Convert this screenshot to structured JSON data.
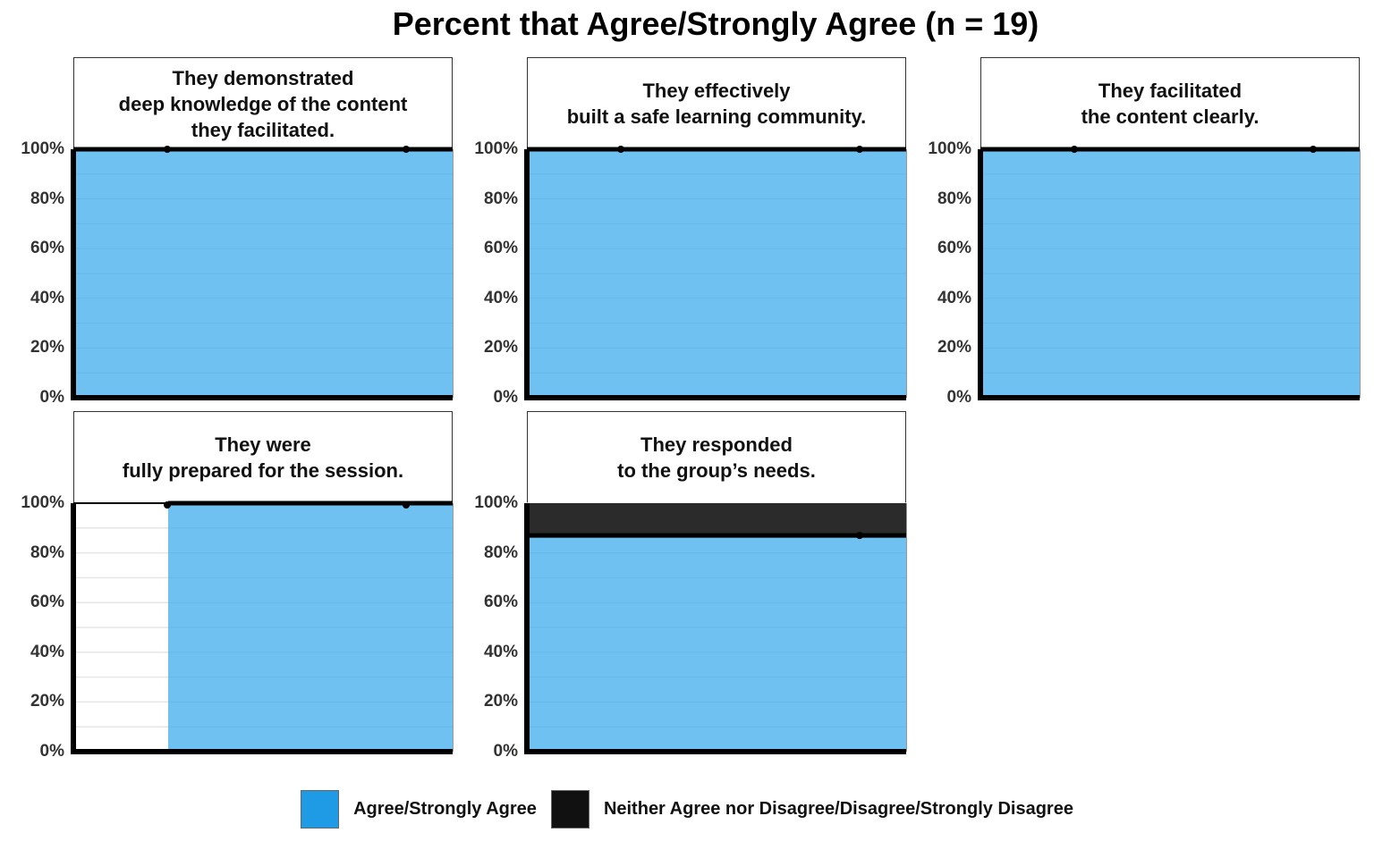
{
  "colors": {
    "agree": "#6ec1f1",
    "agree_legend": "#1f9be6",
    "neither": "#2b2b2b",
    "neither_legend": "#111111",
    "axis": "#000000",
    "grid": "#e6e6e6"
  },
  "chart_data": {
    "type": "area",
    "title": "Percent that Agree/Strongly Agree (n = 19)",
    "ylim": [
      0,
      100
    ],
    "yticks": [
      "0%",
      "20%",
      "40%",
      "60%",
      "80%",
      "100%"
    ],
    "legend": {
      "placement": "bottom",
      "entries": [
        {
          "label": "Agree/Strongly Agree",
          "color": "#1f9be6"
        },
        {
          "label": "Neither Agree nor Disagree/Disagree/Strongly Disagree",
          "color": "#111111"
        }
      ]
    },
    "panels": [
      {
        "title_lines": [
          "They demonstrated",
          "deep knowledge of the content",
          "they facilitated."
        ],
        "x": [
          1,
          2,
          3
        ],
        "series": [
          {
            "values": [
              null,
              100,
              100
            ]
          }
        ]
      },
      {
        "title_lines": [
          "They effectively",
          "built a safe learning community."
        ],
        "x": [
          1,
          2,
          3
        ],
        "series": [
          {
            "values": [
              null,
              100,
              100
            ]
          }
        ]
      },
      {
        "title_lines": [
          "They facilitated",
          "the content clearly."
        ],
        "x": [
          1,
          2,
          3
        ],
        "series": [
          {
            "values": [
              null,
              100,
              100
            ]
          }
        ]
      },
      {
        "title_lines": [
          "They were",
          "fully prepared for the session."
        ],
        "x": [
          1,
          2,
          3
        ],
        "series": [
          {
            "values": [
              null,
              100,
              100
            ]
          }
        ]
      },
      {
        "title_lines": [
          "They responded",
          "to the group’s needs."
        ],
        "x": [
          1,
          2,
          3
        ],
        "series": [
          {
            "values": [
              null,
              null,
              87
            ]
          }
        ]
      }
    ]
  }
}
